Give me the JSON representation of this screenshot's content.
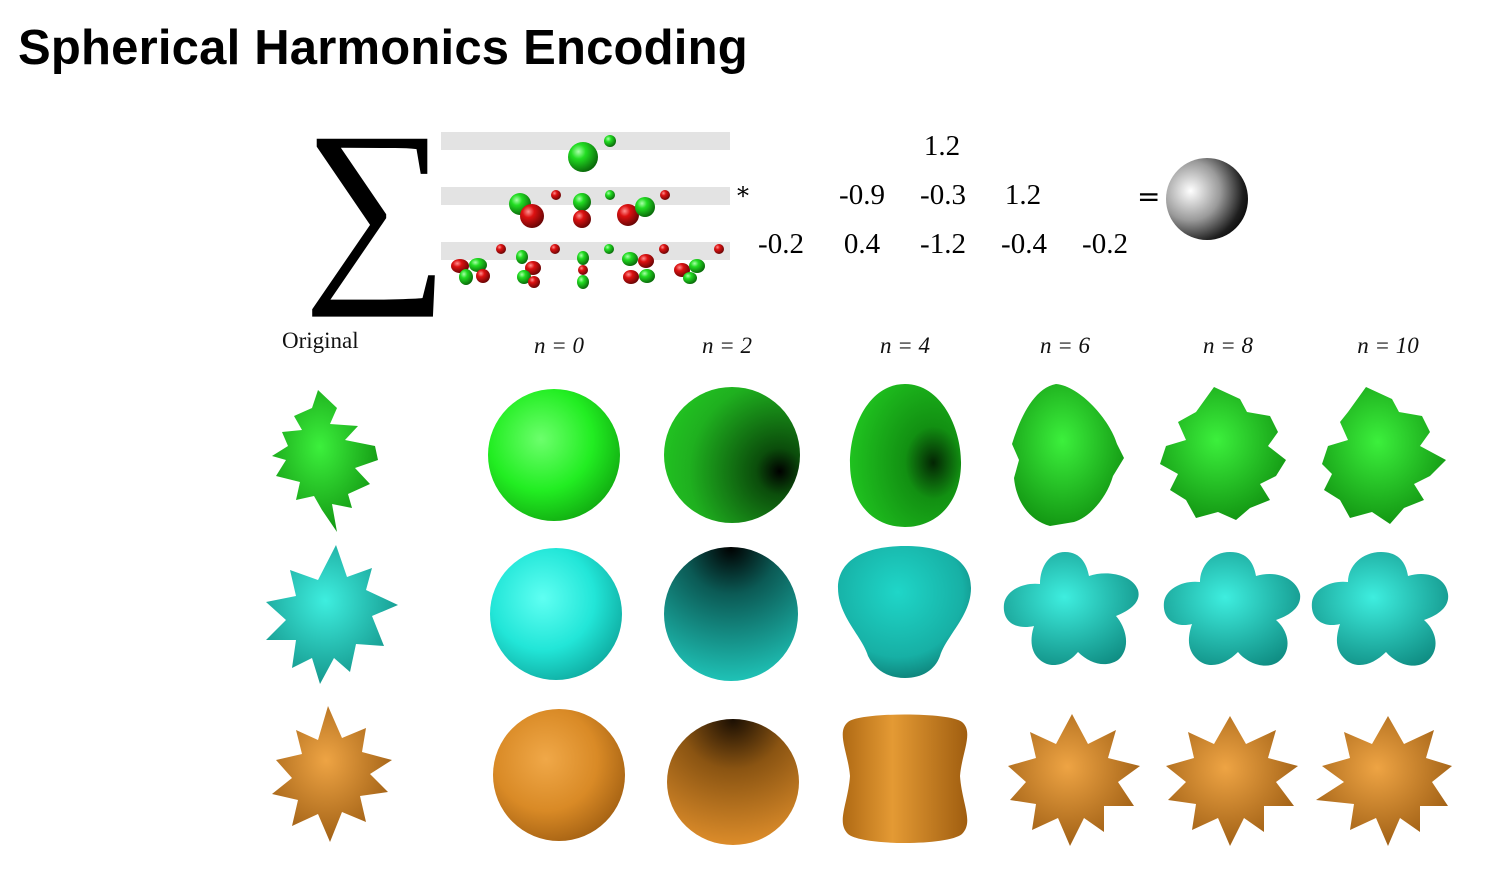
{
  "title": "Spherical Harmonics Encoding",
  "formula": {
    "multiply_symbol": "*",
    "equals_symbol": "=",
    "coefficients": [
      [
        "1.2"
      ],
      [
        "-0.9",
        "-0.3",
        "1.2"
      ],
      [
        "-0.2",
        "0.4",
        "-1.2",
        "-0.4",
        "-0.2"
      ]
    ]
  },
  "grid": {
    "column_labels": [
      "Original",
      "n = 0",
      "n = 2",
      "n = 4",
      "n = 6",
      "n = 8",
      "n = 10"
    ],
    "row_colors": [
      "#22cc22",
      "#22d6c6",
      "#d98a26"
    ]
  }
}
